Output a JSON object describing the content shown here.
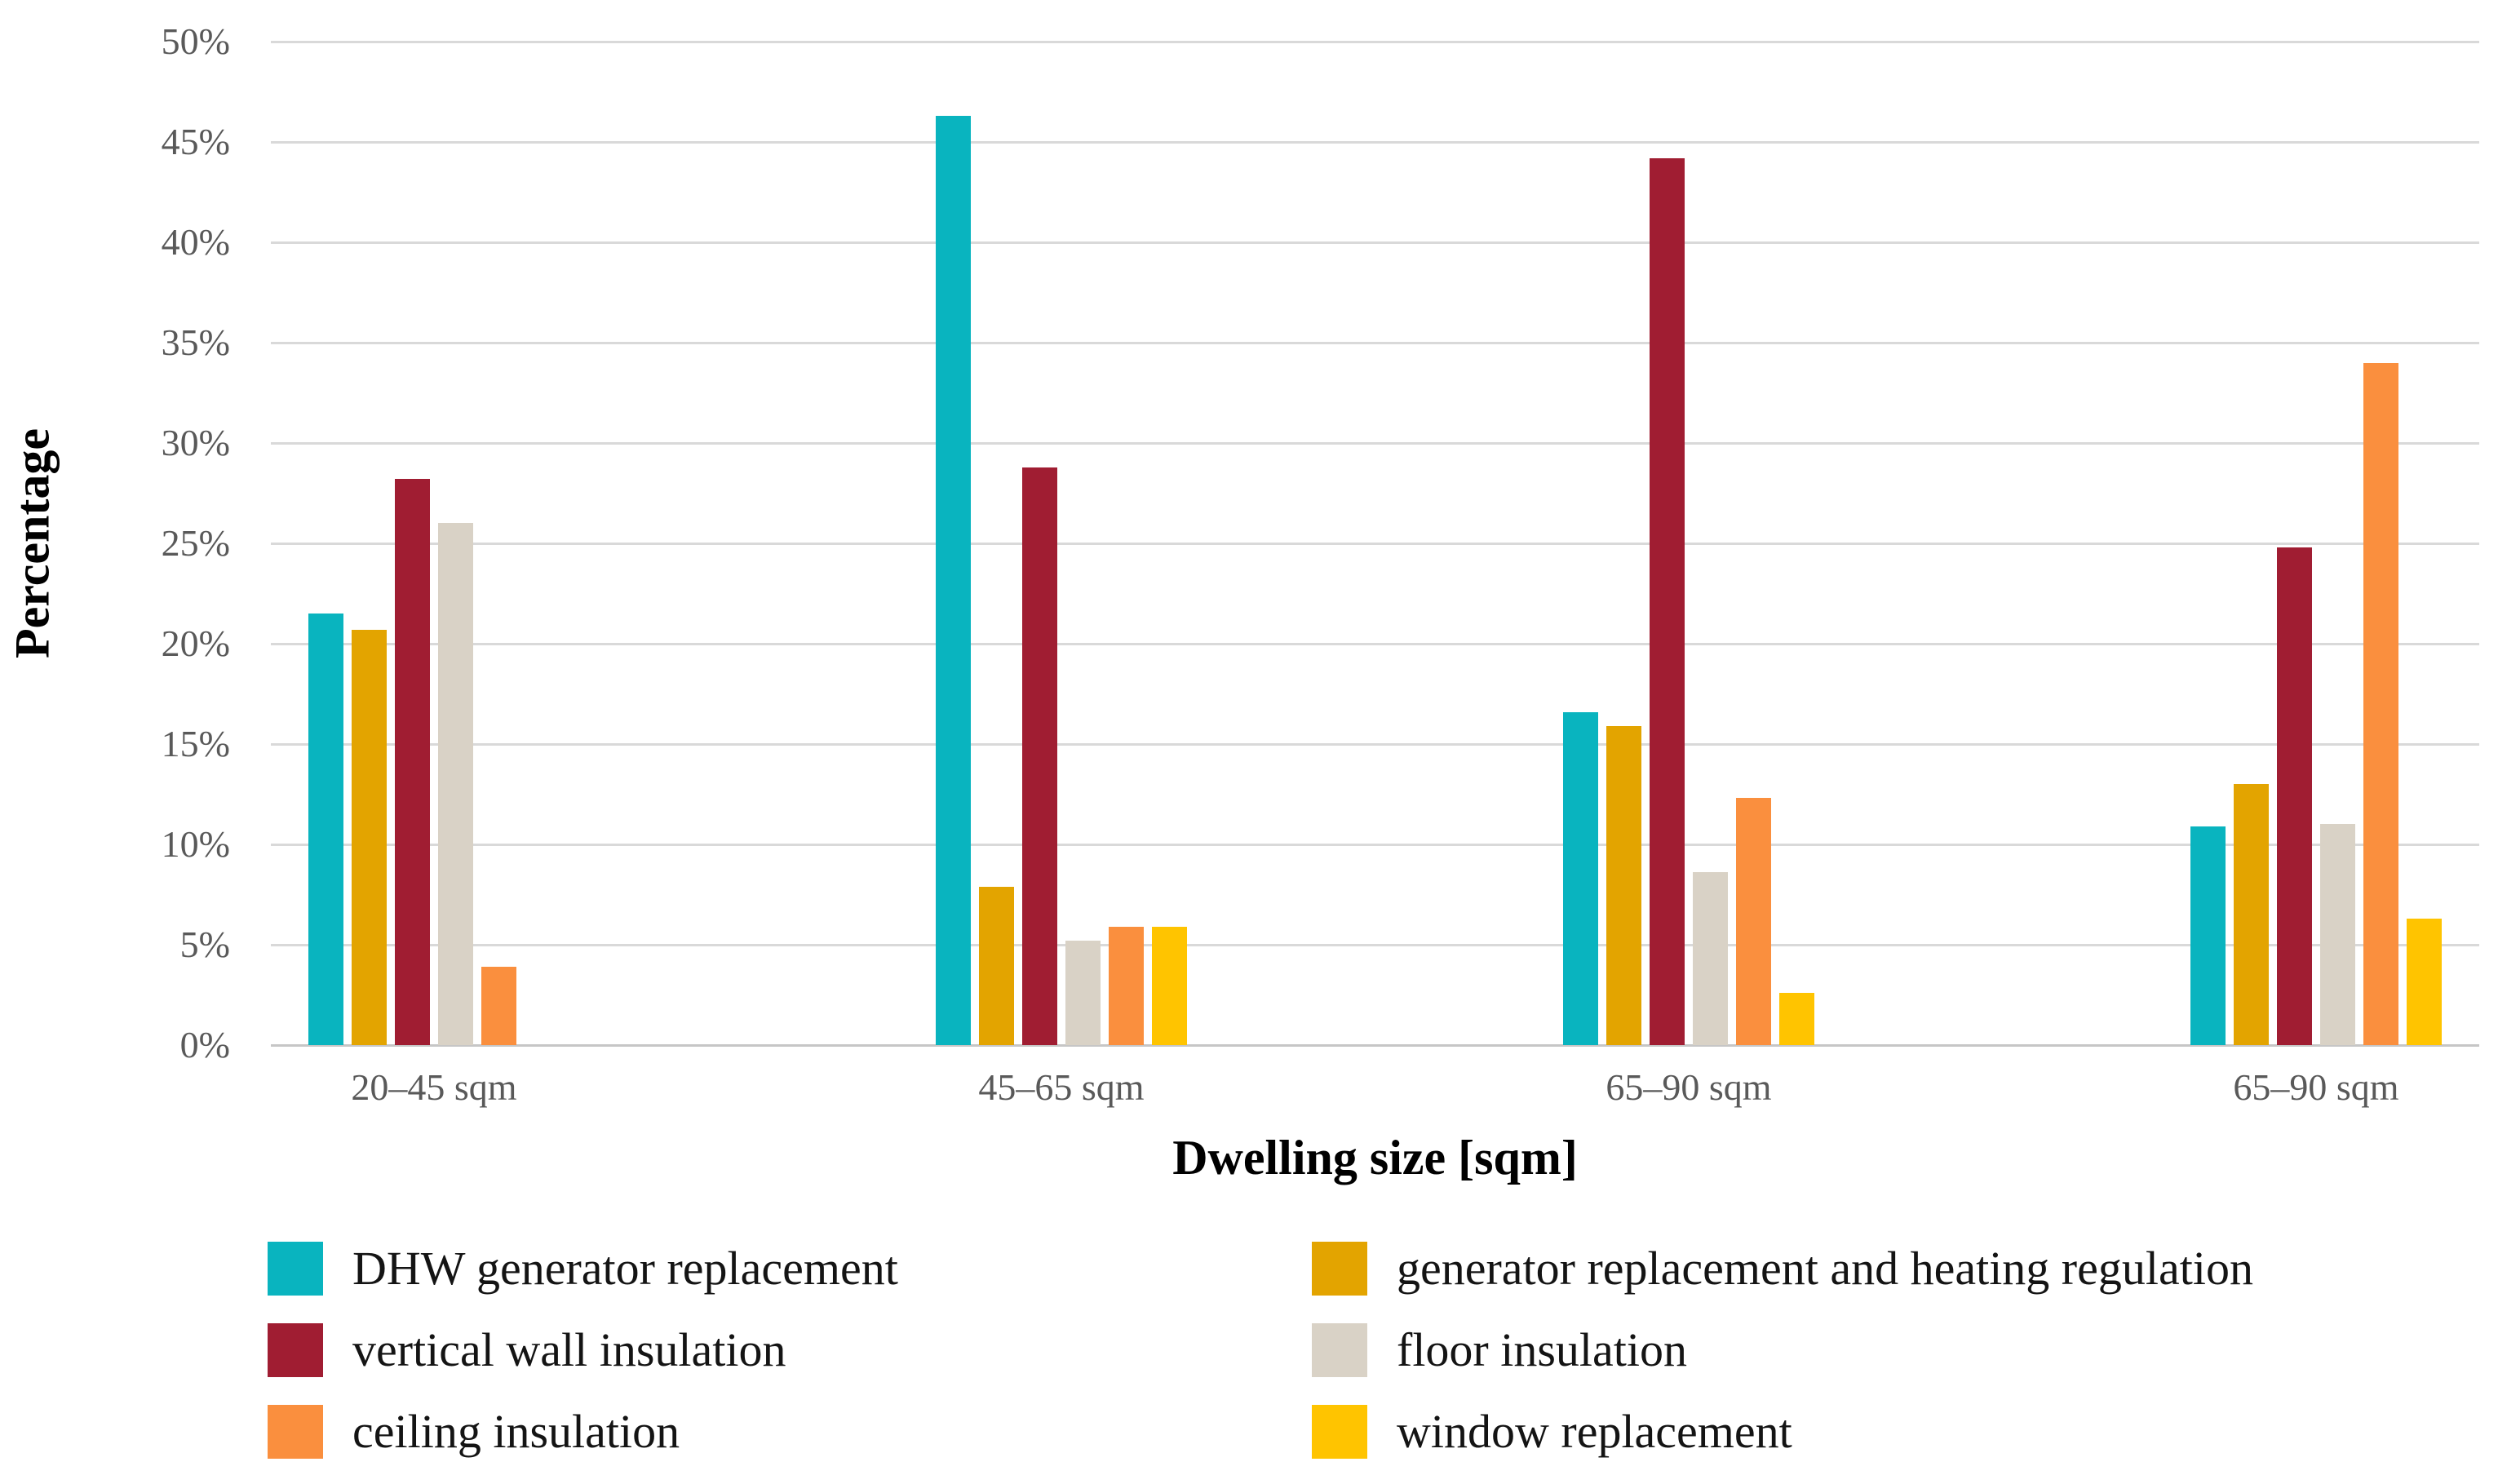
{
  "chart_data": {
    "type": "bar",
    "title": "",
    "xlabel": "Dwelling size [sqm]",
    "ylabel": "Percentage",
    "categories": [
      "20–45 sqm",
      "45–65 sqm",
      "65–90 sqm",
      "65–90 sqm"
    ],
    "series": [
      {
        "name": "DHW generator replacement",
        "color": "#09b4bf",
        "values": [
          21.5,
          46.3,
          16.6,
          10.9
        ]
      },
      {
        "name": "generator replacement and heating regulation",
        "color": "#e3a400",
        "values": [
          20.7,
          7.9,
          15.9,
          13.0
        ]
      },
      {
        "name": "vertical wall insulation",
        "color": "#a01d32",
        "values": [
          28.2,
          28.8,
          44.2,
          24.8
        ]
      },
      {
        "name": "floor insulation",
        "color": "#d9d2c6",
        "values": [
          26.0,
          5.2,
          8.6,
          11.0
        ]
      },
      {
        "name": "ceiling insulation",
        "color": "#fa8f3e",
        "values": [
          3.9,
          5.9,
          12.3,
          34.0
        ]
      },
      {
        "name": "window replacement",
        "color": "#ffc400",
        "values": [
          0,
          5.9,
          2.6,
          6.3
        ]
      }
    ],
    "ylim": [
      0,
      50
    ],
    "ytick_labels_top_to_bottom": [
      "50%",
      "45%",
      "40%",
      "35%",
      "30%",
      "25%",
      "20%",
      "15%",
      "10%",
      "5%",
      "0%"
    ],
    "grid": true,
    "gridline_color": "#d9d9d9",
    "tick_label_color": "#595959",
    "legend_position": "bottom",
    "legend_columns": [
      [
        0,
        2,
        4
      ],
      [
        1,
        3,
        5
      ]
    ]
  }
}
